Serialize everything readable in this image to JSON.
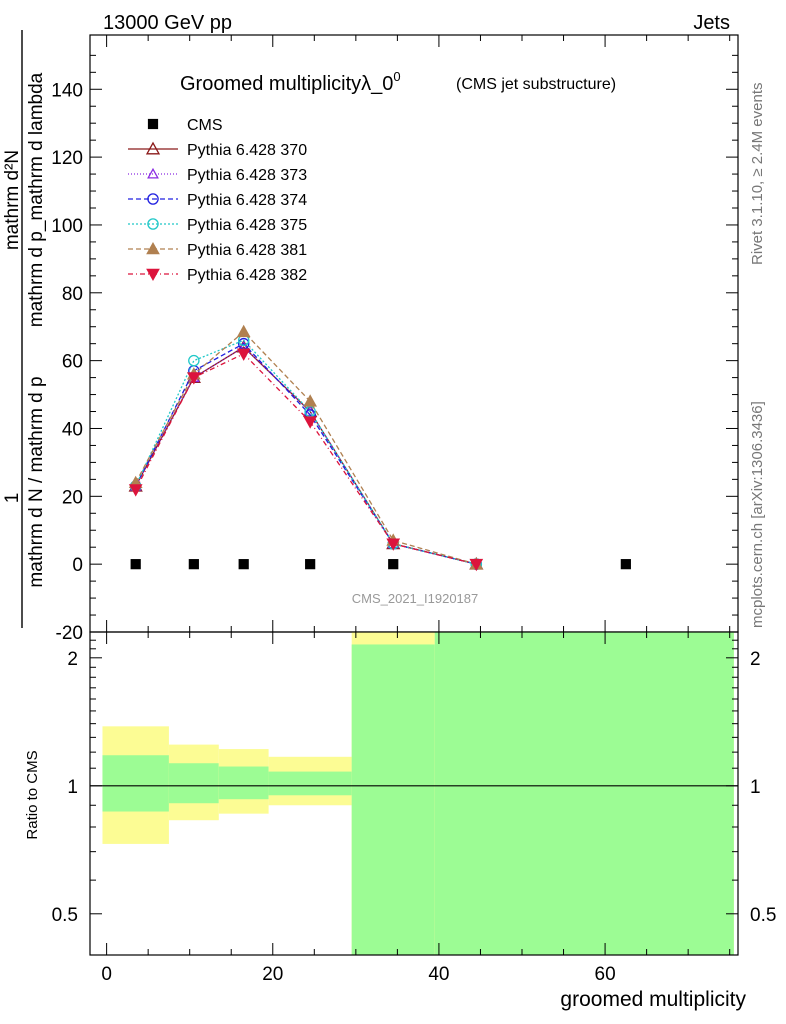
{
  "header": {
    "left": "13000 GeV pp",
    "right": "Jets"
  },
  "side_labels": {
    "rivet": "Rivet 3.1.10, ≥ 2.4M events",
    "mcplots": "mcplots.cern.ch [arXiv:1306.3436]"
  },
  "chart_data": {
    "type": "line",
    "title": "Groomed multiplicityλ_0",
    "title_superscript": "0",
    "subtitle": "(CMS jet substructure)",
    "watermark": "CMS_2021_I1920187",
    "xlabel": "groomed multiplicity",
    "ylabel_numerator": "mathrm d²N",
    "ylabel_denominator": "mathrm d p_mathrm d lambda",
    "ylabel_prefix_num": "1",
    "ylabel_prefix_den": "mathrm d N / mathrm d p",
    "ratio_ylabel": "Ratio to CMS",
    "xlim": [
      -2,
      76
    ],
    "ylim": [
      -20,
      156
    ],
    "ratio_ylim": [
      0.4,
      2.3
    ],
    "x_ticks": [
      0,
      20,
      40,
      60
    ],
    "y_ticks": [
      -20,
      0,
      20,
      40,
      60,
      80,
      100,
      120,
      140
    ],
    "ratio_ticks": [
      0.5,
      1,
      2
    ],
    "legend_position": "top-left",
    "cms": {
      "name": "CMS",
      "x": [
        3.5,
        10.5,
        16.5,
        24.5,
        34.5,
        62.5
      ],
      "y": [
        0,
        0,
        0,
        0,
        0,
        0
      ]
    },
    "series": [
      {
        "name": "Pythia 6.428 370",
        "color": "#8b1a1a",
        "marker": "triangle-open",
        "dash": "solid",
        "x": [
          3.5,
          10.5,
          16.5,
          24.5,
          34.5,
          44.5
        ],
        "y": [
          23,
          55,
          64,
          45,
          6,
          0
        ]
      },
      {
        "name": "Pythia 6.428 373",
        "color": "#8a2be2",
        "marker": "triangle-open-small",
        "dash": "1,2",
        "x": [
          3.5,
          10.5,
          16.5,
          24.5,
          34.5,
          44.5
        ],
        "y": [
          23,
          55,
          64,
          45,
          6,
          0
        ]
      },
      {
        "name": "Pythia 6.428 374",
        "color": "#2020e0",
        "marker": "circle-open",
        "dash": "5,3",
        "x": [
          3.5,
          10.5,
          16.5,
          24.5,
          34.5,
          44.5
        ],
        "y": [
          23,
          57,
          65,
          44,
          6,
          0
        ]
      },
      {
        "name": "Pythia 6.428 375",
        "color": "#20c8c8",
        "marker": "circle-open",
        "dash": "2,2",
        "x": [
          3.5,
          10.5,
          16.5,
          24.5,
          34.5,
          44.5
        ],
        "y": [
          23,
          60,
          66,
          45,
          6,
          0
        ]
      },
      {
        "name": "Pythia 6.428 381",
        "color": "#b08050",
        "marker": "triangle-filled",
        "dash": "5,3",
        "x": [
          3.5,
          10.5,
          16.5,
          24.5,
          34.5,
          44.5
        ],
        "y": [
          24,
          56,
          68.5,
          48,
          7,
          0
        ]
      },
      {
        "name": "Pythia 6.428 382",
        "color": "#dc143c",
        "marker": "triangle-down-filled",
        "dash": "5,3,1,3",
        "x": [
          3.5,
          10.5,
          16.5,
          24.5,
          34.5,
          44.5
        ],
        "y": [
          22,
          55,
          62,
          42,
          6,
          0
        ]
      }
    ],
    "ratio_bands": {
      "inner_color": "#9cfc94",
      "outer_color": "#fcfc94",
      "bins": [
        {
          "x0": -0.5,
          "x1": 7.5,
          "outer": [
            0.73,
            1.38
          ],
          "inner": [
            0.87,
            1.18
          ]
        },
        {
          "x0": 7.5,
          "x1": 13.5,
          "outer": [
            0.83,
            1.25
          ],
          "inner": [
            0.91,
            1.13
          ]
        },
        {
          "x0": 13.5,
          "x1": 19.5,
          "outer": [
            0.86,
            1.22
          ],
          "inner": [
            0.93,
            1.11
          ]
        },
        {
          "x0": 19.5,
          "x1": 29.5,
          "outer": [
            0.9,
            1.17
          ],
          "inner": [
            0.95,
            1.08
          ]
        },
        {
          "x0": 29.5,
          "x1": 39.5,
          "outer": [
            0.4,
            2.3
          ],
          "inner": [
            0.4,
            2.15
          ]
        },
        {
          "x0": 39.5,
          "x1": 75.5,
          "outer": [
            0.4,
            2.3
          ],
          "inner": [
            0.4,
            2.3
          ]
        }
      ]
    }
  }
}
